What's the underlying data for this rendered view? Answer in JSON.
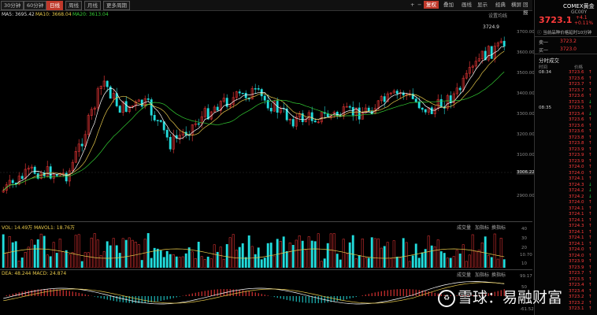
{
  "toolbar": {
    "period_tabs": [
      "30分钟",
      "60分钟",
      "日线",
      "周线",
      "月线",
      "更多周期"
    ],
    "active_period": "日线",
    "right_buttons": [
      "+",
      "−",
      "复权",
      "叠加",
      "画线",
      "显示",
      "经典",
      "横屏",
      "回报"
    ],
    "active_right": "复权"
  },
  "ma": {
    "ma5": "MA5: 3695.42",
    "ma10": "MA10: 3668.04",
    "ma20": "MA20: 3613.04",
    "settings": "设置均线"
  },
  "chart": {
    "price_labels": [
      "3700.00",
      "3600.00",
      "3500.00",
      "3400.00",
      "3300.00",
      "3200.00",
      "3100.00",
      "3006.22",
      "2900.00"
    ],
    "high_marker": "3724.9",
    "colors": {
      "up": "#ff3b3b",
      "down": "#22dddd",
      "ma5": "#ffffff",
      "ma10": "#e6c84a",
      "ma20": "#33cc33"
    }
  },
  "volume": {
    "legend": "VOL: 14.49万  MAVOL1: 18.76万",
    "buttons": [
      "成交量",
      "加指标",
      "换指标"
    ],
    "scale": [
      "40",
      "30",
      "20",
      "10.70",
      "10"
    ]
  },
  "macd": {
    "legend": "DEA: 48.244  MACD: 24.874",
    "buttons": [
      "成交量",
      "加指标",
      "换指标"
    ],
    "scale": [
      "99.17",
      "50",
      "0",
      "-61.52"
    ]
  },
  "quote": {
    "name": "COMEX黄金",
    "code": "GC00Y",
    "price": "3723.1",
    "change": "+4.1",
    "change_pct": "+0.11%",
    "notice": "当前品种价格延时10分钟",
    "sell_label": "卖一",
    "sell_price": "3723.2",
    "buy_label": "买一",
    "buy_price": "3723.0",
    "ticks_title": "分时成交",
    "col_time": "时间",
    "col_price": "价格",
    "ticks": [
      {
        "time": "08:34",
        "price": "3723.6",
        "dir": "up"
      },
      {
        "time": "",
        "price": "3723.6",
        "dir": "up"
      },
      {
        "time": "",
        "price": "3723.7",
        "dir": "up"
      },
      {
        "time": "",
        "price": "3723.7",
        "dir": "up"
      },
      {
        "time": "",
        "price": "3723.6",
        "dir": "up"
      },
      {
        "time": "",
        "price": "3723.5",
        "dir": "dn"
      },
      {
        "time": "08:35",
        "price": "3723.5",
        "dir": "up"
      },
      {
        "time": "",
        "price": "3723.4",
        "dir": "dn"
      },
      {
        "time": "",
        "price": "3723.6",
        "dir": "up"
      },
      {
        "time": "",
        "price": "3723.6",
        "dir": "up"
      },
      {
        "time": "",
        "price": "3723.6",
        "dir": "up"
      },
      {
        "time": "",
        "price": "3723.8",
        "dir": "up"
      },
      {
        "time": "",
        "price": "3723.8",
        "dir": "up"
      },
      {
        "time": "",
        "price": "3723.9",
        "dir": "up"
      },
      {
        "time": "",
        "price": "3723.9",
        "dir": "up"
      },
      {
        "time": "",
        "price": "3723.9",
        "dir": "up"
      },
      {
        "time": "",
        "price": "3724.0",
        "dir": "up"
      },
      {
        "time": "",
        "price": "3724.0",
        "dir": "up"
      },
      {
        "time": "",
        "price": "3724.1",
        "dir": "up"
      },
      {
        "time": "",
        "price": "3724.3",
        "dir": "dn"
      },
      {
        "time": "",
        "price": "3724.2",
        "dir": "dn"
      },
      {
        "time": "",
        "price": "3724.2",
        "dir": "dn"
      },
      {
        "time": "",
        "price": "3724.0",
        "dir": "up"
      },
      {
        "time": "",
        "price": "3724.1",
        "dir": "up"
      },
      {
        "time": "",
        "price": "3724.1",
        "dir": "up"
      },
      {
        "time": "",
        "price": "3724.1",
        "dir": "up"
      },
      {
        "time": "",
        "price": "3724.3",
        "dir": "up"
      },
      {
        "time": "",
        "price": "3724.1",
        "dir": "up"
      },
      {
        "time": "",
        "price": "3724.1",
        "dir": "up"
      },
      {
        "time": "",
        "price": "3724.1",
        "dir": "up"
      },
      {
        "time": "",
        "price": "3724.0",
        "dir": "up"
      },
      {
        "time": "",
        "price": "3724.0",
        "dir": "up"
      },
      {
        "time": "",
        "price": "3723.9",
        "dir": "up"
      },
      {
        "time": "",
        "price": "3723.9",
        "dir": "up"
      },
      {
        "time": "",
        "price": "3723.7",
        "dir": "up"
      },
      {
        "time": "",
        "price": "3723.5",
        "dir": "up"
      },
      {
        "time": "",
        "price": "3723.4",
        "dir": "up"
      },
      {
        "time": "",
        "price": "3723.4",
        "dir": "up"
      },
      {
        "time": "",
        "price": "3723.2",
        "dir": "up"
      },
      {
        "time": "",
        "price": "3723.2",
        "dir": "up"
      },
      {
        "time": "",
        "price": "3723.1",
        "dir": "up"
      }
    ]
  },
  "watermark": "雪球：易融财富"
}
